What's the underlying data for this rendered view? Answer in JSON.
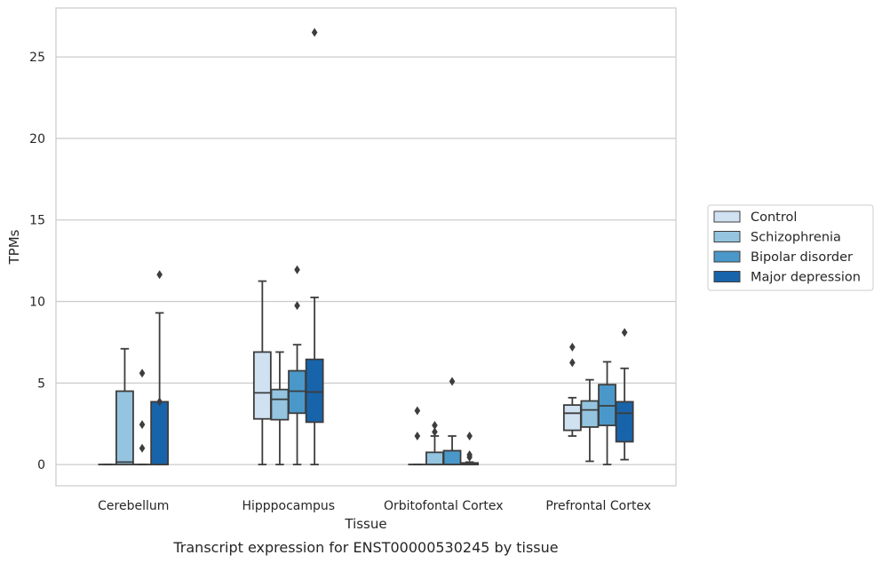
{
  "caption": "Transcript expression for ENST00000530245 by tissue",
  "chart_data": {
    "type": "box",
    "title": "",
    "xlabel": "Tissue",
    "ylabel": "TPMs",
    "ylim": [
      -1.3,
      28
    ],
    "yticks": [
      0,
      5,
      10,
      15,
      20,
      25
    ],
    "grid": "horizontal",
    "legend_position": "right",
    "categories": [
      "Cerebellum",
      "Hipppocampus",
      "Orbitofontal Cortex",
      "Prefrontal Cortex"
    ],
    "series": [
      {
        "name": "Control",
        "color": "#d0e1f2",
        "boxes": [
          {
            "whislo": 0,
            "q1": 0,
            "med": 0,
            "q3": 0,
            "whishi": 0,
            "fliers": []
          },
          {
            "whislo": 0,
            "q1": 2.8,
            "med": 4.4,
            "q3": 6.9,
            "whishi": 11.25,
            "fliers": []
          },
          {
            "whislo": 0,
            "q1": 0,
            "med": 0,
            "q3": 0,
            "whishi": 0,
            "fliers": [
              1.75,
              3.3
            ]
          },
          {
            "whislo": 1.75,
            "q1": 2.1,
            "med": 3.15,
            "q3": 3.65,
            "whishi": 4.1,
            "fliers": [
              6.25,
              7.2
            ]
          }
        ]
      },
      {
        "name": "Schizophrenia",
        "color": "#94c4df",
        "boxes": [
          {
            "whislo": 0,
            "q1": 0,
            "med": 0.15,
            "q3": 4.5,
            "whishi": 7.1,
            "fliers": []
          },
          {
            "whislo": 0,
            "q1": 2.75,
            "med": 4.0,
            "q3": 4.6,
            "whishi": 6.9,
            "fliers": []
          },
          {
            "whislo": 0,
            "q1": 0,
            "med": 0,
            "q3": 0.75,
            "whishi": 1.75,
            "fliers": [
              2.0,
              2.4
            ]
          },
          {
            "whislo": 0.2,
            "q1": 2.3,
            "med": 3.35,
            "q3": 3.9,
            "whishi": 5.2,
            "fliers": []
          }
        ]
      },
      {
        "name": "Bipolar disorder",
        "color": "#4a98c9",
        "boxes": [
          {
            "whislo": 0,
            "q1": 0,
            "med": 0,
            "q3": 0,
            "whishi": 0,
            "fliers": [
              1.0,
              2.45,
              5.6
            ]
          },
          {
            "whislo": 0,
            "q1": 3.15,
            "med": 4.5,
            "q3": 5.75,
            "whishi": 7.35,
            "fliers": [
              9.75,
              11.95
            ]
          },
          {
            "whislo": 0,
            "q1": 0,
            "med": 0,
            "q3": 0.85,
            "whishi": 1.75,
            "fliers": [
              5.1
            ]
          },
          {
            "whislo": 0,
            "q1": 2.4,
            "med": 3.6,
            "q3": 4.9,
            "whishi": 6.3,
            "fliers": []
          }
        ]
      },
      {
        "name": "Major depression",
        "color": "#1764ab",
        "boxes": [
          {
            "whislo": 0,
            "q1": 0,
            "med": 0,
            "q3": 3.85,
            "whishi": 9.3,
            "fliers": [
              3.85,
              11.65
            ]
          },
          {
            "whislo": 0,
            "q1": 2.6,
            "med": 4.45,
            "q3": 6.45,
            "whishi": 10.25,
            "fliers": [
              26.5
            ]
          },
          {
            "whislo": 0,
            "q1": 0,
            "med": 0,
            "q3": 0.1,
            "whishi": 0.15,
            "fliers": [
              0.45,
              0.6,
              1.75
            ]
          },
          {
            "whislo": 0.3,
            "q1": 1.4,
            "med": 3.15,
            "q3": 3.85,
            "whishi": 5.9,
            "fliers": [
              8.1
            ]
          }
        ]
      }
    ]
  }
}
